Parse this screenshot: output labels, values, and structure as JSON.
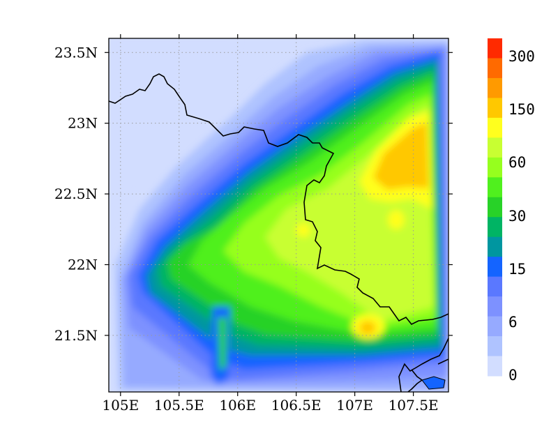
{
  "map": {
    "x_ticks": [
      "105E",
      "105.5E",
      "106E",
      "106.5E",
      "107E",
      "107.5E"
    ],
    "y_ticks": [
      "23.5N",
      "23N",
      "22.5N",
      "22N",
      "21.5N"
    ],
    "x_tick_values": [
      105.0,
      105.5,
      106.0,
      106.5,
      107.0,
      107.5
    ],
    "y_tick_values": [
      23.5,
      23.0,
      22.5,
      22.0,
      21.5
    ],
    "lon_range": [
      104.9,
      107.8
    ],
    "lat_range": [
      21.1,
      23.6
    ],
    "gridlines": "dotted"
  },
  "colorbar": {
    "labels": [
      "300",
      "150",
      "60",
      "30",
      "15",
      "6",
      "0"
    ],
    "colors": [
      "#ff2a00",
      "#ff6a00",
      "#ff9a00",
      "#ffc800",
      "#ffff1e",
      "#c8ff32",
      "#96ff1e",
      "#50f01e",
      "#28d228",
      "#00b464",
      "#0096a0",
      "#1464ff",
      "#5a78ff",
      "#7d91ff",
      "#96aaff",
      "#afc3ff",
      "#d2ddff"
    ]
  },
  "palette": {
    "background_low": "#d2ddff",
    "border_line": "#000000"
  }
}
